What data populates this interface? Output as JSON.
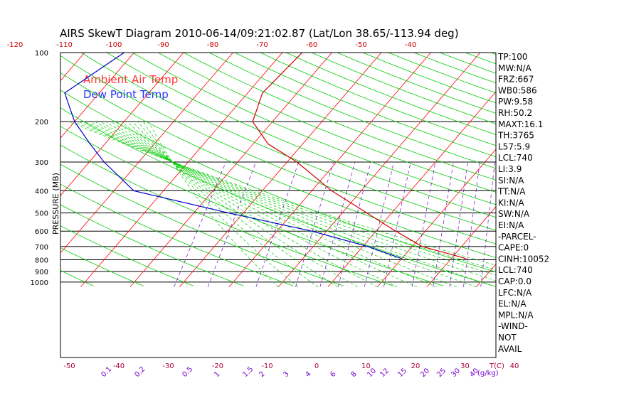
{
  "chart_data": {
    "type": "line",
    "title": "AIRS SkewT Diagram 2010-06-14/09:21:02.87 (Lat/Lon 38.65/-113.94 deg)",
    "ylabel": "PRESSURE (MB)",
    "xlabel_right": "T(C)",
    "mixing_label": "(g/kg)",
    "y_ticks": [
      100,
      200,
      300,
      400,
      500,
      600,
      700,
      800,
      900,
      1000
    ],
    "x_ticks_bottom": [
      -50,
      -40,
      -30,
      -20,
      -10,
      0,
      10,
      20,
      30,
      40
    ],
    "x_ticks_top": [
      -120,
      -110,
      -100,
      -90,
      -80,
      -70,
      -60,
      -50,
      -40
    ],
    "mixing_ratio_ticks": [
      "0.1",
      "0.2",
      "0.5",
      "1",
      "1.5",
      "2",
      "3",
      "4",
      "6",
      "8",
      "10",
      "12",
      "15",
      "20",
      "25",
      "30",
      "40"
    ],
    "legend": [
      {
        "label": "Ambient Air Temp",
        "color": "#ff0000"
      },
      {
        "label": "Dew Point Temp",
        "color": "#0000ff"
      }
    ],
    "series": [
      {
        "name": "Ambient Air Temp",
        "color": "#cc0000",
        "points": [
          [
            100,
            -56
          ],
          [
            150,
            -57
          ],
          [
            200,
            -54
          ],
          [
            250,
            -47
          ],
          [
            300,
            -38
          ],
          [
            400,
            -26
          ],
          [
            500,
            -15
          ],
          [
            600,
            -6
          ],
          [
            700,
            2
          ],
          [
            790,
            13
          ]
        ]
      },
      {
        "name": "Dew Point Temp",
        "color": "#0000cc",
        "points": [
          [
            100,
            -92
          ],
          [
            150,
            -97
          ],
          [
            200,
            -90
          ],
          [
            250,
            -83
          ],
          [
            300,
            -77
          ],
          [
            400,
            -66
          ],
          [
            500,
            -43
          ],
          [
            600,
            -23
          ],
          [
            700,
            -9
          ],
          [
            790,
            0
          ]
        ]
      }
    ]
  },
  "side_panel": [
    "TP:100",
    "MW:N/A",
    "FRZ:667",
    "WB0:586",
    "PW:9.58",
    "RH:50.2",
    "MAXT:16.1",
    "TH:3765",
    "L57:5.9",
    "LCL:740",
    "LI:3.9",
    "SI:N/A",
    "TT:N/A",
    "KI:N/A",
    "SW:N/A",
    "EI:N/A",
    "-PARCEL-",
    "CAPE:0",
    "CINH:10052",
    "LCL:740",
    "CAP:0.0",
    "LFC:N/A",
    "EL:N/A",
    "MPL:N/A",
    "-WIND-",
    "NOT",
    "AVAIL"
  ],
  "colors": {
    "isotherm": "#ff0000",
    "dry_adiabat": "#00cc00",
    "moist_adiabat": "#00cc00",
    "mixing_ratio": "#7700cc",
    "isobar": "#000000",
    "bottom_axis": "#aa0044",
    "top_axis": "#cc0000",
    "mixing_axis": "#7700cc"
  }
}
